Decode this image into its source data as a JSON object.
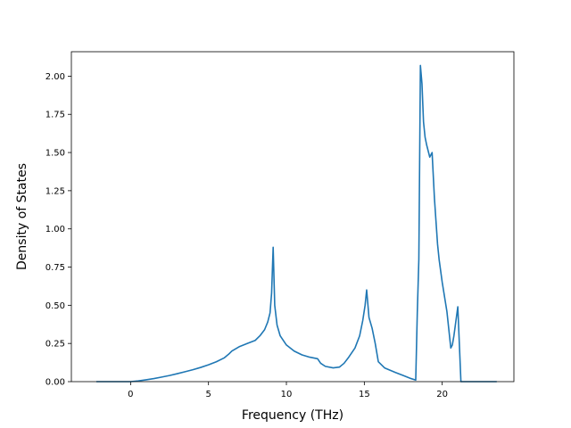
{
  "chart_data": {
    "type": "line",
    "title": "",
    "xlabel": "Frequency (THz)",
    "ylabel": "Density of States",
    "xlim": [
      -3.8,
      24.6
    ],
    "ylim": [
      0.0,
      2.16
    ],
    "x_ticks": [
      0,
      5,
      10,
      15,
      20
    ],
    "y_ticks": [
      0.0,
      0.25,
      0.5,
      0.75,
      1.0,
      1.25,
      1.5,
      1.75,
      2.0
    ],
    "x_tick_labels": [
      "0",
      "5",
      "10",
      "15",
      "20"
    ],
    "y_tick_labels": [
      "0.00",
      "0.25",
      "0.50",
      "0.75",
      "1.00",
      "1.25",
      "1.50",
      "1.75",
      "2.00"
    ],
    "grid": false,
    "legend": "none",
    "series": [
      {
        "color": "#1f77b4",
        "x": [
          -2.2,
          -1.0,
          0.0,
          0.5,
          1.0,
          1.5,
          2.0,
          2.5,
          3.0,
          3.5,
          4.0,
          4.5,
          5.0,
          5.5,
          6.0,
          6.3,
          6.5,
          7.0,
          7.5,
          8.0,
          8.3,
          8.6,
          8.8,
          8.95,
          9.05,
          9.15,
          9.25,
          9.4,
          9.6,
          10.0,
          10.5,
          11.0,
          11.5,
          12.0,
          12.2,
          12.5,
          13.0,
          13.4,
          13.7,
          14.0,
          14.4,
          14.7,
          14.9,
          15.05,
          15.15,
          15.3,
          15.5,
          15.7,
          15.9,
          16.3,
          17.0,
          17.5,
          18.0,
          18.3,
          18.4,
          18.5,
          18.6,
          18.7,
          18.8,
          18.9,
          19.0,
          19.2,
          19.35,
          19.5,
          19.6,
          19.7,
          19.8,
          20.0,
          20.3,
          20.55,
          20.65,
          20.75,
          21.0,
          21.2,
          21.45,
          22.0,
          23.5
        ],
        "y": [
          0.0,
          0.0,
          0.0,
          0.005,
          0.012,
          0.02,
          0.03,
          0.04,
          0.052,
          0.065,
          0.078,
          0.093,
          0.11,
          0.13,
          0.155,
          0.18,
          0.2,
          0.23,
          0.25,
          0.27,
          0.3,
          0.34,
          0.39,
          0.45,
          0.58,
          0.88,
          0.5,
          0.37,
          0.3,
          0.24,
          0.2,
          0.175,
          0.16,
          0.15,
          0.12,
          0.1,
          0.09,
          0.095,
          0.12,
          0.16,
          0.22,
          0.3,
          0.4,
          0.5,
          0.6,
          0.42,
          0.35,
          0.25,
          0.13,
          0.09,
          0.06,
          0.04,
          0.02,
          0.01,
          0.45,
          0.8,
          2.07,
          1.95,
          1.7,
          1.6,
          1.55,
          1.47,
          1.5,
          1.2,
          1.05,
          0.9,
          0.8,
          0.65,
          0.46,
          0.22,
          0.24,
          0.3,
          0.49,
          0.0,
          0.0,
          0.0,
          0.0
        ]
      }
    ]
  }
}
